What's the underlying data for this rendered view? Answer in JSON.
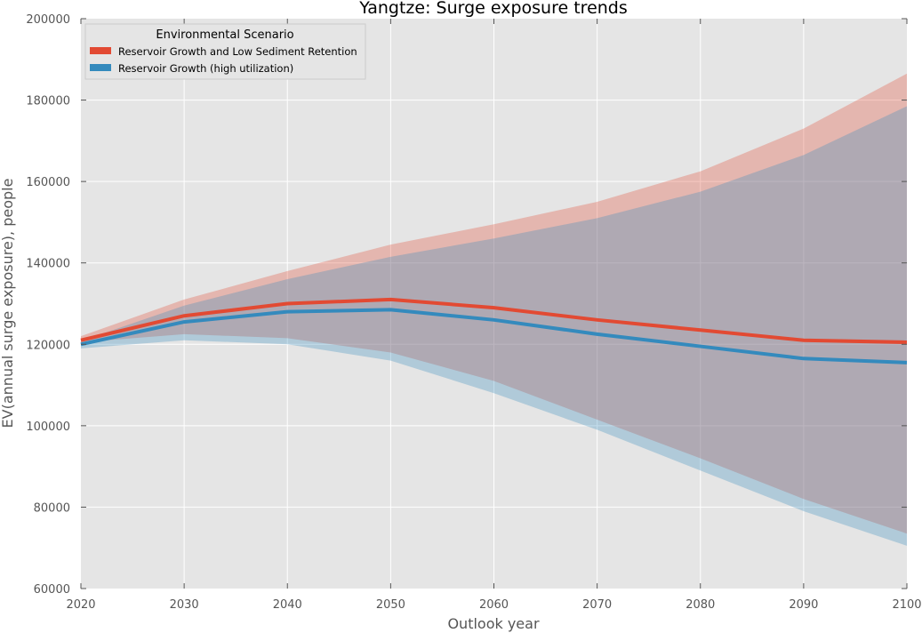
{
  "chart_data": {
    "type": "line",
    "title": "Yangtze: Surge exposure trends",
    "xlabel": "Outlook year",
    "ylabel": "EV(annual surge exposure), people",
    "xlim": [
      2020,
      2100
    ],
    "ylim": [
      60000,
      200000
    ],
    "xticks": [
      2020,
      2030,
      2040,
      2050,
      2060,
      2070,
      2080,
      2090,
      2100
    ],
    "yticks": [
      60000,
      80000,
      100000,
      120000,
      140000,
      160000,
      180000,
      200000
    ],
    "grid": true,
    "legend": {
      "title": "Environmental Scenario",
      "placement": "top-left"
    },
    "x": [
      2020,
      2030,
      2040,
      2050,
      2060,
      2070,
      2080,
      2090,
      2100
    ],
    "series": [
      {
        "name": "Reservoir Growth and Low Sediment Retention",
        "color": "#E24A33",
        "values": [
          121000,
          127000,
          130000,
          131000,
          129000,
          126000,
          123500,
          121000,
          120500
        ],
        "upper": [
          122000,
          131000,
          138000,
          144500,
          149500,
          155000,
          162500,
          173000,
          186500
        ],
        "lower": [
          120500,
          122500,
          121500,
          118000,
          111000,
          101500,
          92000,
          82000,
          73500
        ]
      },
      {
        "name": "Reservoir Growth (high utilization)",
        "color": "#348ABD",
        "values": [
          120000,
          125500,
          128000,
          128500,
          126000,
          122500,
          119500,
          116500,
          115500
        ],
        "upper": [
          120800,
          129500,
          136000,
          141500,
          146000,
          151000,
          157500,
          166500,
          178500
        ],
        "lower": [
          119000,
          121000,
          120000,
          116000,
          108000,
          99000,
          89000,
          79000,
          70500
        ]
      }
    ]
  }
}
